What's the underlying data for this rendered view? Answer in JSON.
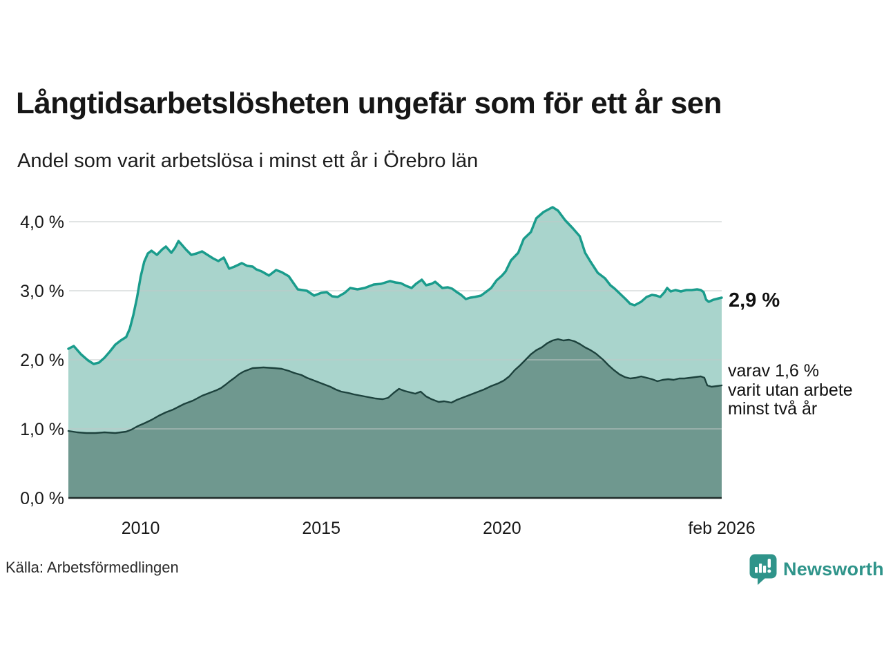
{
  "header": {
    "title": "Långtidsarbetslösheten ungefär som för ett år sen",
    "subtitle": "Andel som varit arbetslösa i minst ett år i Örebro län"
  },
  "annotations": {
    "latest_total": "2,9 %",
    "two_year_line1": "varav 1,6 %",
    "two_year_line2": "varit utan arbete",
    "two_year_line3": "minst två år"
  },
  "source": {
    "label": "Källa: Arbetsförmedlingen"
  },
  "branding": {
    "name": "Newsworthy",
    "icon": "bar-chart-speech-bubble-icon",
    "color": "#2f948a"
  },
  "chart_data": {
    "type": "area",
    "title": "Långtidsarbetslösheten ungefär som för ett år sen",
    "subtitle": "Andel som varit arbetslösa i minst ett år i Örebro län",
    "unit": "%",
    "grid": true,
    "legend_position": "right-annotations",
    "x_axis": {
      "range": [
        2008.02,
        2026.08
      ],
      "ticks": [
        {
          "label": "2010",
          "year": 2010
        },
        {
          "label": "2015",
          "year": 2015
        },
        {
          "label": "2020",
          "year": 2020
        },
        {
          "label": "feb 2026",
          "year": 2026.08
        }
      ]
    },
    "y_axis": {
      "range": [
        0,
        4.3
      ],
      "values": [
        4,
        3,
        2,
        1,
        0
      ],
      "tick_labels": [
        "4,0 %",
        "3,0 %",
        "2,0 %",
        "1,0 %",
        "0,0 %"
      ]
    },
    "colors": {
      "line_one_year": "#1a9c8c",
      "fill_one_year": "#a9d4cc",
      "line_two_year": "#1d423d",
      "fill_two_year": "#6f988f",
      "gridline": "#c2c7c8",
      "baseline": "#1f2b29"
    },
    "series": [
      {
        "name": "Andel som varit arbetslösa i minst ett år",
        "latest_label": "2,9 %",
        "latest_value": 2.9,
        "color": "#1a9c8c",
        "fill": "#a9d4cc",
        "points": [
          [
            2008.0,
            2.16
          ],
          [
            2008.15,
            2.2
          ],
          [
            2008.35,
            2.08
          ],
          [
            2008.55,
            1.99
          ],
          [
            2008.7,
            1.94
          ],
          [
            2008.85,
            1.96
          ],
          [
            2009.0,
            2.03
          ],
          [
            2009.15,
            2.12
          ],
          [
            2009.3,
            2.22
          ],
          [
            2009.45,
            2.28
          ],
          [
            2009.6,
            2.33
          ],
          [
            2009.7,
            2.45
          ],
          [
            2009.8,
            2.65
          ],
          [
            2009.9,
            2.9
          ],
          [
            2010.0,
            3.2
          ],
          [
            2010.1,
            3.42
          ],
          [
            2010.2,
            3.54
          ],
          [
            2010.3,
            3.58
          ],
          [
            2010.45,
            3.52
          ],
          [
            2010.6,
            3.6
          ],
          [
            2010.7,
            3.64
          ],
          [
            2010.85,
            3.55
          ],
          [
            2010.95,
            3.62
          ],
          [
            2011.05,
            3.72
          ],
          [
            2011.15,
            3.66
          ],
          [
            2011.25,
            3.6
          ],
          [
            2011.4,
            3.52
          ],
          [
            2011.55,
            3.54
          ],
          [
            2011.7,
            3.57
          ],
          [
            2011.85,
            3.52
          ],
          [
            2012.0,
            3.47
          ],
          [
            2012.15,
            3.43
          ],
          [
            2012.3,
            3.48
          ],
          [
            2012.45,
            3.32
          ],
          [
            2012.6,
            3.35
          ],
          [
            2012.8,
            3.4
          ],
          [
            2012.95,
            3.36
          ],
          [
            2013.1,
            3.35
          ],
          [
            2013.2,
            3.31
          ],
          [
            2013.35,
            3.28
          ],
          [
            2013.55,
            3.22
          ],
          [
            2013.75,
            3.3
          ],
          [
            2013.9,
            3.27
          ],
          [
            2014.1,
            3.21
          ],
          [
            2014.35,
            3.02
          ],
          [
            2014.6,
            3.0
          ],
          [
            2014.8,
            2.93
          ],
          [
            2015.0,
            2.97
          ],
          [
            2015.15,
            2.98
          ],
          [
            2015.3,
            2.92
          ],
          [
            2015.45,
            2.91
          ],
          [
            2015.65,
            2.97
          ],
          [
            2015.8,
            3.04
          ],
          [
            2016.0,
            3.02
          ],
          [
            2016.2,
            3.04
          ],
          [
            2016.45,
            3.09
          ],
          [
            2016.65,
            3.1
          ],
          [
            2016.9,
            3.14
          ],
          [
            2017.05,
            3.12
          ],
          [
            2017.2,
            3.11
          ],
          [
            2017.35,
            3.07
          ],
          [
            2017.5,
            3.04
          ],
          [
            2017.62,
            3.1
          ],
          [
            2017.78,
            3.16
          ],
          [
            2017.9,
            3.08
          ],
          [
            2018.05,
            3.1
          ],
          [
            2018.15,
            3.13
          ],
          [
            2018.35,
            3.04
          ],
          [
            2018.5,
            3.05
          ],
          [
            2018.62,
            3.03
          ],
          [
            2018.75,
            2.98
          ],
          [
            2018.87,
            2.94
          ],
          [
            2019.0,
            2.88
          ],
          [
            2019.12,
            2.9
          ],
          [
            2019.25,
            2.91
          ],
          [
            2019.42,
            2.93
          ],
          [
            2019.55,
            2.98
          ],
          [
            2019.7,
            3.04
          ],
          [
            2019.85,
            3.15
          ],
          [
            2020.0,
            3.22
          ],
          [
            2020.1,
            3.28
          ],
          [
            2020.25,
            3.44
          ],
          [
            2020.45,
            3.55
          ],
          [
            2020.6,
            3.75
          ],
          [
            2020.8,
            3.85
          ],
          [
            2020.95,
            4.05
          ],
          [
            2021.15,
            4.14
          ],
          [
            2021.4,
            4.21
          ],
          [
            2021.55,
            4.16
          ],
          [
            2021.75,
            4.02
          ],
          [
            2021.95,
            3.91
          ],
          [
            2022.15,
            3.79
          ],
          [
            2022.3,
            3.55
          ],
          [
            2022.45,
            3.42
          ],
          [
            2022.65,
            3.26
          ],
          [
            2022.85,
            3.18
          ],
          [
            2023.0,
            3.08
          ],
          [
            2023.12,
            3.03
          ],
          [
            2023.3,
            2.94
          ],
          [
            2023.42,
            2.88
          ],
          [
            2023.55,
            2.81
          ],
          [
            2023.67,
            2.79
          ],
          [
            2023.85,
            2.84
          ],
          [
            2024.0,
            2.91
          ],
          [
            2024.15,
            2.94
          ],
          [
            2024.27,
            2.93
          ],
          [
            2024.38,
            2.91
          ],
          [
            2024.5,
            2.98
          ],
          [
            2024.57,
            3.04
          ],
          [
            2024.67,
            2.99
          ],
          [
            2024.8,
            3.01
          ],
          [
            2024.95,
            2.99
          ],
          [
            2025.1,
            3.01
          ],
          [
            2025.25,
            3.01
          ],
          [
            2025.4,
            3.02
          ],
          [
            2025.5,
            3.01
          ],
          [
            2025.58,
            2.98
          ],
          [
            2025.65,
            2.87
          ],
          [
            2025.72,
            2.84
          ],
          [
            2025.85,
            2.87
          ],
          [
            2026.0,
            2.89
          ],
          [
            2026.08,
            2.9
          ]
        ]
      },
      {
        "name": "varav varit utan arbete minst två år",
        "latest_label": "varav 1,6 % varit utan arbete minst två år",
        "latest_value": 1.6,
        "color": "#1d423d",
        "fill": "#6f988f",
        "points": [
          [
            2008.0,
            0.97
          ],
          [
            2008.25,
            0.95
          ],
          [
            2008.5,
            0.94
          ],
          [
            2008.75,
            0.94
          ],
          [
            2009.0,
            0.95
          ],
          [
            2009.3,
            0.94
          ],
          [
            2009.6,
            0.96
          ],
          [
            2009.75,
            0.99
          ],
          [
            2009.92,
            1.04
          ],
          [
            2010.1,
            1.08
          ],
          [
            2010.3,
            1.13
          ],
          [
            2010.5,
            1.19
          ],
          [
            2010.7,
            1.24
          ],
          [
            2010.9,
            1.28
          ],
          [
            2011.05,
            1.32
          ],
          [
            2011.2,
            1.36
          ],
          [
            2011.45,
            1.41
          ],
          [
            2011.7,
            1.48
          ],
          [
            2011.95,
            1.53
          ],
          [
            2012.1,
            1.56
          ],
          [
            2012.22,
            1.59
          ],
          [
            2012.35,
            1.64
          ],
          [
            2012.47,
            1.69
          ],
          [
            2012.6,
            1.74
          ],
          [
            2012.72,
            1.79
          ],
          [
            2012.85,
            1.83
          ],
          [
            2013.0,
            1.86
          ],
          [
            2013.1,
            1.88
          ],
          [
            2013.4,
            1.89
          ],
          [
            2013.7,
            1.88
          ],
          [
            2013.9,
            1.87
          ],
          [
            2014.1,
            1.84
          ],
          [
            2014.25,
            1.81
          ],
          [
            2014.45,
            1.78
          ],
          [
            2014.6,
            1.74
          ],
          [
            2014.8,
            1.7
          ],
          [
            2015.0,
            1.66
          ],
          [
            2015.25,
            1.61
          ],
          [
            2015.4,
            1.57
          ],
          [
            2015.55,
            1.54
          ],
          [
            2015.75,
            1.52
          ],
          [
            2015.9,
            1.5
          ],
          [
            2016.1,
            1.48
          ],
          [
            2016.3,
            1.46
          ],
          [
            2016.5,
            1.44
          ],
          [
            2016.7,
            1.43
          ],
          [
            2016.85,
            1.45
          ],
          [
            2017.0,
            1.52
          ],
          [
            2017.15,
            1.58
          ],
          [
            2017.3,
            1.55
          ],
          [
            2017.45,
            1.53
          ],
          [
            2017.6,
            1.51
          ],
          [
            2017.75,
            1.54
          ],
          [
            2017.9,
            1.47
          ],
          [
            2018.05,
            1.43
          ],
          [
            2018.25,
            1.39
          ],
          [
            2018.4,
            1.4
          ],
          [
            2018.6,
            1.38
          ],
          [
            2018.75,
            1.42
          ],
          [
            2018.9,
            1.45
          ],
          [
            2019.1,
            1.49
          ],
          [
            2019.3,
            1.53
          ],
          [
            2019.5,
            1.57
          ],
          [
            2019.7,
            1.62
          ],
          [
            2019.9,
            1.66
          ],
          [
            2020.05,
            1.7
          ],
          [
            2020.2,
            1.76
          ],
          [
            2020.35,
            1.85
          ],
          [
            2020.5,
            1.92
          ],
          [
            2020.65,
            2.0
          ],
          [
            2020.8,
            2.08
          ],
          [
            2020.95,
            2.14
          ],
          [
            2021.1,
            2.18
          ],
          [
            2021.25,
            2.24
          ],
          [
            2021.4,
            2.28
          ],
          [
            2021.55,
            2.3
          ],
          [
            2021.7,
            2.28
          ],
          [
            2021.85,
            2.29
          ],
          [
            2022.0,
            2.27
          ],
          [
            2022.15,
            2.23
          ],
          [
            2022.3,
            2.18
          ],
          [
            2022.45,
            2.14
          ],
          [
            2022.6,
            2.09
          ],
          [
            2022.8,
            2.0
          ],
          [
            2022.95,
            1.92
          ],
          [
            2023.1,
            1.85
          ],
          [
            2023.25,
            1.79
          ],
          [
            2023.4,
            1.75
          ],
          [
            2023.55,
            1.73
          ],
          [
            2023.7,
            1.74
          ],
          [
            2023.85,
            1.76
          ],
          [
            2024.0,
            1.74
          ],
          [
            2024.15,
            1.72
          ],
          [
            2024.3,
            1.69
          ],
          [
            2024.45,
            1.71
          ],
          [
            2024.6,
            1.72
          ],
          [
            2024.75,
            1.71
          ],
          [
            2024.9,
            1.73
          ],
          [
            2025.05,
            1.73
          ],
          [
            2025.2,
            1.74
          ],
          [
            2025.35,
            1.75
          ],
          [
            2025.5,
            1.76
          ],
          [
            2025.6,
            1.74
          ],
          [
            2025.68,
            1.63
          ],
          [
            2025.8,
            1.61
          ],
          [
            2025.95,
            1.62
          ],
          [
            2026.08,
            1.63
          ]
        ]
      }
    ]
  }
}
